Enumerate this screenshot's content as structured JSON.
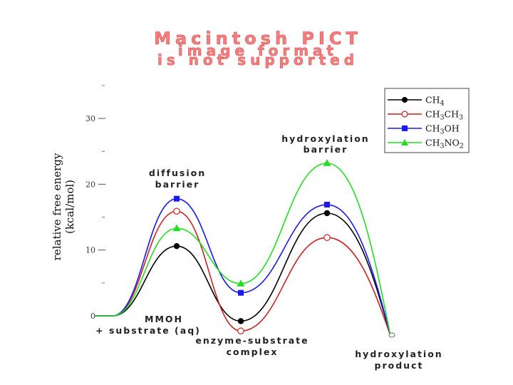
{
  "banner": {
    "line1": "Macintosh PICT",
    "line2": "image format",
    "line3": "is not supported"
  },
  "chart_data": {
    "type": "line",
    "title": "",
    "xlabel": "",
    "ylabel": "relative free energy (kcal/mol)",
    "ylabel_line1": "relative free energy",
    "ylabel_line2": "(kcal/mol)",
    "ylim": [
      0,
      30
    ],
    "yticks": [
      {
        "value": 0,
        "label": "0"
      },
      {
        "value": 10,
        "label": "10"
      },
      {
        "value": 20,
        "label": "20"
      },
      {
        "value": 30,
        "label": "30"
      }
    ],
    "yminor": [
      5,
      15,
      25,
      35
    ],
    "grid": false,
    "legend_position": "top-right",
    "stages": [
      {
        "x": 0,
        "lines": [
          "MMOH",
          "+ substrate (aq)"
        ]
      },
      {
        "x": 1,
        "lines": [
          "diffusion",
          "barrier"
        ]
      },
      {
        "x": 2,
        "lines": [
          "enzyme-substrate",
          "complex"
        ]
      },
      {
        "x": 3,
        "lines": [
          "hydroxylation",
          "barrier"
        ]
      },
      {
        "x": 4,
        "lines": [
          "hydroxylation",
          "product"
        ]
      }
    ],
    "series": [
      {
        "name": "CH4",
        "label_parts": [
          [
            "CH",
            false
          ],
          [
            "4",
            true
          ]
        ],
        "color": "#000000",
        "marker": "circle-filled",
        "values": [
          0,
          10.6,
          -0.8,
          15.6,
          -3
        ]
      },
      {
        "name": "CH3CH3",
        "label_parts": [
          [
            "CH",
            false
          ],
          [
            "3",
            true
          ],
          [
            "CH",
            false
          ],
          [
            "3",
            true
          ]
        ],
        "color": "#cc2222",
        "marker": "circle-open",
        "values": [
          0,
          15.9,
          -2.3,
          11.9,
          -3
        ]
      },
      {
        "name": "CH3OH",
        "label_parts": [
          [
            "CH",
            false
          ],
          [
            "3",
            true
          ],
          [
            "OH",
            false
          ]
        ],
        "color": "#1a1aee",
        "marker": "square",
        "values": [
          0,
          17.8,
          3.5,
          16.9,
          -3
        ]
      },
      {
        "name": "CH3NO2",
        "label_parts": [
          [
            "CH",
            false
          ],
          [
            "3",
            true
          ],
          [
            "NO",
            false
          ],
          [
            "2",
            true
          ]
        ],
        "color": "#22dd22",
        "marker": "triangle",
        "values": [
          0,
          13.3,
          4.9,
          23.2,
          -3
        ]
      }
    ]
  }
}
